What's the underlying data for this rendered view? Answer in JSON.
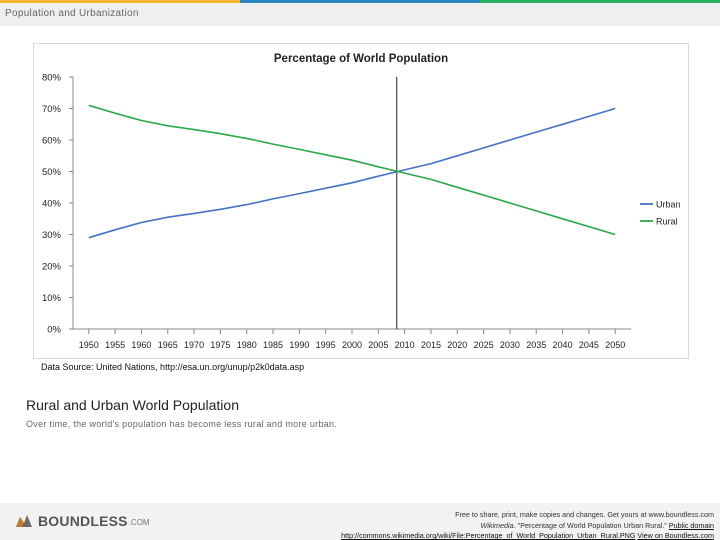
{
  "slide": {
    "title": "Population and Urbanization",
    "stripe_colors": [
      "#f7b731",
      "#2e86c1",
      "#27ae60"
    ]
  },
  "chart_data": {
    "type": "line",
    "title": "Percentage of World Population",
    "x": [
      1950,
      1955,
      1960,
      1965,
      1970,
      1975,
      1980,
      1985,
      1990,
      1995,
      2000,
      2005,
      2010,
      2015,
      2020,
      2025,
      2030,
      2035,
      2040,
      2045,
      2050
    ],
    "series": [
      {
        "name": "Urban",
        "color": "#4472c4",
        "values": [
          29.0,
          31.5,
          33.8,
          35.5,
          36.7,
          38.0,
          39.5,
          41.3,
          43.0,
          44.7,
          46.4,
          48.5,
          50.5,
          52.5,
          55.0,
          57.5,
          60.0,
          62.5,
          65.0,
          67.5,
          70.0
        ]
      },
      {
        "name": "Rural",
        "color": "#2aa84a",
        "values": [
          71.0,
          68.5,
          66.2,
          64.5,
          63.3,
          62.0,
          60.5,
          58.7,
          57.0,
          55.3,
          53.6,
          51.5,
          49.5,
          47.5,
          45.0,
          42.5,
          40.0,
          37.5,
          35.0,
          32.5,
          30.0
        ]
      }
    ],
    "ylim": [
      0,
      80
    ],
    "yticks": [
      "0%",
      "10%",
      "20%",
      "30%",
      "40%",
      "50%",
      "60%",
      "70%",
      "80%"
    ],
    "xlim": [
      1947,
      2053
    ],
    "marker_year": 2008.5,
    "grid": "vertical ticks only",
    "legend": "right",
    "xlabel": "",
    "ylabel": ""
  },
  "source_note": "Data Source: United Nations, http://esa.un.org/unup/p2k0data.asp",
  "caption": {
    "title": "Rural and Urban World Population",
    "text": "Over time, the world's population has become less rural and more urban."
  },
  "footer": {
    "logo_word": "BOUNDLESS",
    "logo_suffix": ".COM",
    "line1": "Free to share, print, make copies and changes. Get yours at www.boundless.com",
    "line2_source": "Wikimedia.",
    "line2_title": "\"Percentage of World Population Urban Rural.\"",
    "line2_license": "Public domain",
    "line3_url": "http://commons.wikimedia.org/wiki/File:Percentage_of_World_Population_Urban_Rural.PNG",
    "line3_view": "View on Boundless.com"
  }
}
